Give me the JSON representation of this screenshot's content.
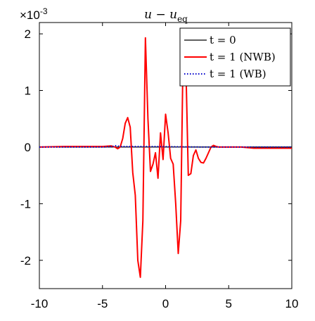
{
  "chart_data": {
    "type": "line",
    "title": "u − u",
    "title_sub": "eq",
    "y_exponent_prefix": "×10",
    "y_exponent_power": "-3",
    "xlim": [
      -10,
      10
    ],
    "ylim": [
      -2.5,
      2.2
    ],
    "xticks": [
      -10,
      -5,
      0,
      5,
      10
    ],
    "yticks": [
      -2,
      -1,
      0,
      1,
      2
    ],
    "xtick_labels": [
      "-10",
      "-5",
      "0",
      "5",
      "10"
    ],
    "ytick_labels": [
      "-2",
      "-1",
      "0",
      "1",
      "2"
    ],
    "grid": false,
    "legend_position": "top-right",
    "series": [
      {
        "name": "t = 0",
        "color": "#000000",
        "style": "solid",
        "x": [
          -10,
          10
        ],
        "y": [
          0,
          0
        ]
      },
      {
        "name": "t = 1 (NWB)",
        "color": "#ff0000",
        "style": "solid",
        "x": [
          -10,
          -9,
          -8,
          -7,
          -6,
          -5,
          -4.3,
          -4,
          -3.8,
          -3.6,
          -3.4,
          -3.2,
          -3.0,
          -2.8,
          -2.6,
          -2.4,
          -2.2,
          -2.0,
          -1.8,
          -1.6,
          -1.4,
          -1.2,
          -1.0,
          -0.8,
          -0.6,
          -0.4,
          -0.2,
          0.0,
          0.2,
          0.4,
          0.6,
          0.8,
          1.0,
          1.2,
          1.4,
          1.6,
          1.8,
          2.0,
          2.2,
          2.4,
          2.6,
          2.8,
          3.0,
          3.2,
          3.4,
          3.6,
          3.8,
          4.0,
          4.2,
          4.4,
          4.6,
          5,
          6,
          7,
          8,
          9,
          10
        ],
        "y": [
          0,
          0.005,
          0.01,
          0.01,
          0.01,
          0.01,
          0.02,
          0.0,
          -0.03,
          0.0,
          0.15,
          0.42,
          0.52,
          0.35,
          -0.45,
          -0.85,
          -2.0,
          -2.3,
          -1.3,
          1.93,
          0.5,
          -0.43,
          -0.3,
          -0.1,
          -0.55,
          0.25,
          -0.22,
          0.58,
          0.25,
          -0.2,
          -0.3,
          -1.0,
          -1.88,
          -1.3,
          1.85,
          1.52,
          -0.5,
          -0.47,
          -0.15,
          -0.05,
          -0.2,
          -0.27,
          -0.28,
          -0.2,
          -0.1,
          0.0,
          0.03,
          0.01,
          0.0,
          0.0,
          0.0,
          0.0,
          0.0,
          -0.02,
          -0.02,
          -0.02,
          -0.02
        ]
      },
      {
        "name": "t = 1 (WB)",
        "color": "#0000cc",
        "style": "dotted",
        "x": [
          -10,
          -5,
          -4.2,
          -4,
          -3.5,
          -3,
          -1,
          3,
          5,
          10
        ],
        "y": [
          0,
          0,
          0.01,
          0.025,
          0.01,
          0.01,
          0.01,
          0.0,
          0.0,
          0.0
        ]
      }
    ]
  }
}
